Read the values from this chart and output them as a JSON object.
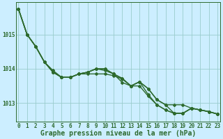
{
  "title": "Graphe pression niveau de la mer (hPa)",
  "bg_color": "#cceeff",
  "line_color": "#2d6a2d",
  "grid_color": "#99cccc",
  "x_values": [
    0,
    1,
    2,
    3,
    4,
    5,
    6,
    7,
    8,
    9,
    10,
    11,
    12,
    13,
    14,
    15,
    16,
    17,
    18,
    19,
    20,
    21,
    22,
    23
  ],
  "series": [
    [
      1015.75,
      1015.0,
      1014.65,
      1014.2,
      1013.9,
      1013.75,
      1013.75,
      1013.85,
      1013.85,
      1013.85,
      1013.85,
      1013.8,
      1013.7,
      1013.5,
      1013.5,
      1013.2,
      1012.95,
      1012.8,
      1012.7,
      1012.7,
      1012.85,
      1012.8,
      1012.75,
      1012.68
    ],
    [
      1015.75,
      1015.0,
      1014.65,
      1014.2,
      1013.95,
      1013.75,
      1013.75,
      1013.85,
      1013.9,
      1014.0,
      1013.95,
      1013.85,
      1013.6,
      1013.5,
      1013.62,
      1013.25,
      1012.95,
      1012.8,
      1012.7,
      1012.7,
      1012.85,
      1012.8,
      1012.75,
      1012.68
    ],
    [
      1015.75,
      1015.0,
      1014.65,
      1014.2,
      1013.9,
      1013.75,
      1013.75,
      1013.85,
      1013.9,
      1014.0,
      1014.0,
      1013.85,
      1013.72,
      1013.5,
      1013.62,
      1013.42,
      1013.1,
      1012.95,
      1012.7,
      1012.7,
      1012.85,
      1012.8,
      1012.75,
      1012.68
    ],
    [
      1015.75,
      1015.0,
      1014.65,
      1014.2,
      1013.9,
      1013.75,
      1013.75,
      1013.85,
      1013.9,
      1014.0,
      1014.0,
      1013.85,
      1013.72,
      1013.5,
      1013.62,
      1013.42,
      1013.1,
      1012.95,
      1012.95,
      1012.95,
      1012.85,
      1012.8,
      1012.75,
      1012.68
    ]
  ],
  "ylim": [
    1012.45,
    1015.95
  ],
  "yticks": [
    1013,
    1014,
    1015
  ],
  "xlim": [
    -0.3,
    23.3
  ],
  "title_fontsize": 7,
  "tick_fontsize": 5.5,
  "line_width": 1.0,
  "marker": "D",
  "marker_size": 2.0
}
